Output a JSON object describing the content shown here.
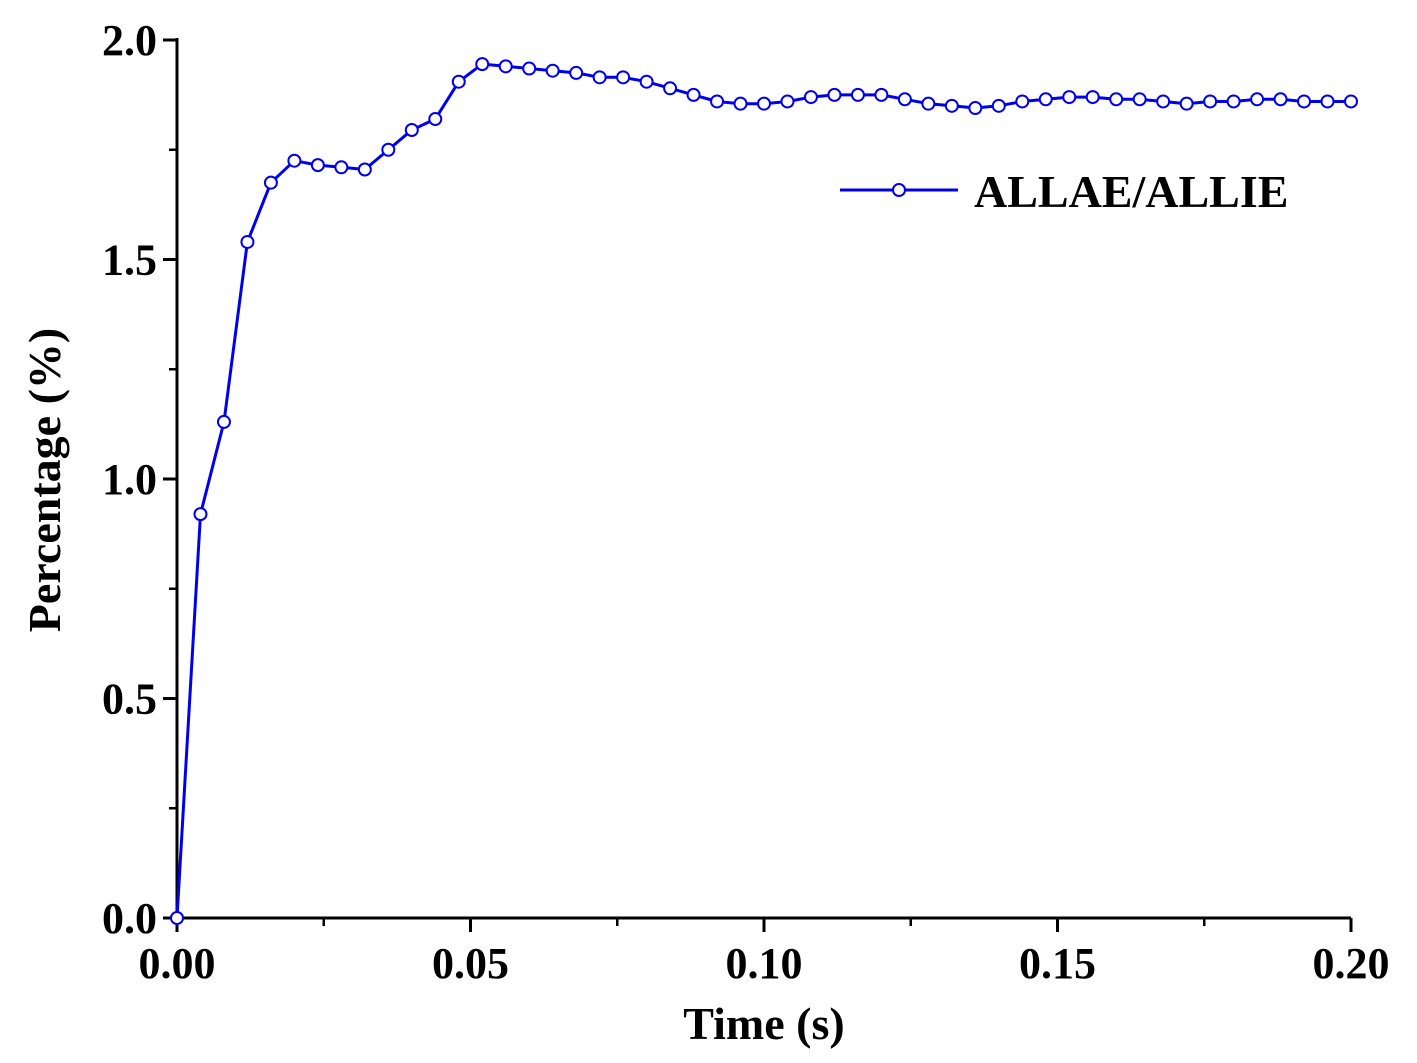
{
  "chart_data": {
    "type": "line",
    "title": "",
    "xlabel": "Time (s)",
    "ylabel": "Percentage (%)",
    "xlim": [
      0,
      0.2
    ],
    "ylim": [
      0,
      2.0
    ],
    "x_ticks": [
      0.0,
      0.05,
      0.1,
      0.15,
      0.2
    ],
    "x_tick_labels": [
      "0.00",
      "0.05",
      "0.10",
      "0.15",
      "0.20"
    ],
    "y_ticks": [
      0.0,
      0.5,
      1.0,
      1.5,
      2.0
    ],
    "y_tick_labels": [
      "0.0",
      "0.5",
      "1.0",
      "1.5",
      "2.0"
    ],
    "grid": false,
    "legend_position": "top-right",
    "series": [
      {
        "name": "ALLAE/ALLIE",
        "color": "#0000ee",
        "marker": "open-circle",
        "x": [
          0,
          0.004,
          0.008,
          0.012,
          0.016,
          0.02,
          0.024,
          0.028,
          0.032,
          0.036,
          0.04,
          0.044,
          0.048,
          0.052,
          0.056,
          0.06,
          0.064,
          0.068,
          0.072,
          0.076,
          0.08,
          0.084,
          0.088,
          0.092,
          0.096,
          0.1,
          0.104,
          0.108,
          0.112,
          0.116,
          0.12,
          0.124,
          0.128,
          0.132,
          0.136,
          0.14,
          0.144,
          0.148,
          0.152,
          0.156,
          0.16,
          0.164,
          0.168,
          0.172,
          0.176,
          0.18,
          0.184,
          0.188,
          0.192,
          0.196,
          0.2
        ],
        "y": [
          0.0,
          0.92,
          1.13,
          1.54,
          1.675,
          1.725,
          1.715,
          1.71,
          1.705,
          1.75,
          1.795,
          1.82,
          1.905,
          1.945,
          1.94,
          1.935,
          1.93,
          1.925,
          1.915,
          1.915,
          1.905,
          1.89,
          1.875,
          1.86,
          1.855,
          1.855,
          1.86,
          1.87,
          1.875,
          1.875,
          1.875,
          1.865,
          1.855,
          1.85,
          1.845,
          1.85,
          1.86,
          1.865,
          1.87,
          1.87,
          1.865,
          1.865,
          1.86,
          1.855,
          1.86,
          1.86,
          1.865,
          1.865,
          1.86,
          1.86,
          1.86
        ]
      }
    ]
  }
}
